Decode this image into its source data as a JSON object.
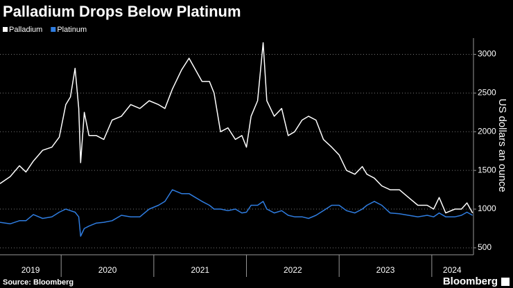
{
  "chart_data": {
    "type": "line",
    "title": "Palladium Drops Below Platinum",
    "y_label": "US dollars an ounce",
    "source": "Source: Bloomberg",
    "brand": "Bloomberg",
    "x": [
      2019.34,
      2019.45,
      2019.55,
      2019.62,
      2019.7,
      2019.8,
      2019.9,
      2019.98,
      2020.05,
      2020.1,
      2020.15,
      2020.19,
      2020.21,
      2020.25,
      2020.3,
      2020.38,
      2020.46,
      2020.55,
      2020.65,
      2020.75,
      2020.85,
      2020.95,
      2021.05,
      2021.12,
      2021.2,
      2021.3,
      2021.38,
      2021.45,
      2021.52,
      2021.6,
      2021.65,
      2021.72,
      2021.8,
      2021.88,
      2021.95,
      2022.0,
      2022.05,
      2022.12,
      2022.18,
      2022.22,
      2022.3,
      2022.38,
      2022.45,
      2022.52,
      2022.6,
      2022.67,
      2022.75,
      2022.83,
      2022.92,
      2023.0,
      2023.08,
      2023.17,
      2023.25,
      2023.3,
      2023.38,
      2023.46,
      2023.55,
      2023.65,
      2023.75,
      2023.85,
      2023.95,
      2024.02,
      2024.08,
      2024.15,
      2024.25,
      2024.32,
      2024.38,
      2024.44
    ],
    "series": [
      {
        "name": "Palladium",
        "color": "#ffffff",
        "values": [
          1330,
          1420,
          1560,
          1480,
          1620,
          1760,
          1800,
          1930,
          2350,
          2450,
          2820,
          2300,
          1600,
          2250,
          1950,
          1950,
          1900,
          2150,
          2200,
          2350,
          2300,
          2400,
          2350,
          2300,
          2550,
          2800,
          2950,
          2800,
          2650,
          2650,
          2500,
          2000,
          2050,
          1900,
          1950,
          1800,
          2200,
          2400,
          3150,
          2400,
          2200,
          2300,
          1950,
          2000,
          2150,
          2200,
          2150,
          1900,
          1800,
          1700,
          1500,
          1450,
          1550,
          1450,
          1400,
          1300,
          1250,
          1250,
          1150,
          1050,
          1050,
          1000,
          1150,
          950,
          1000,
          1000,
          1080,
          950
        ]
      },
      {
        "name": "Platinum",
        "color": "#2f7de1",
        "values": [
          830,
          810,
          850,
          850,
          930,
          880,
          900,
          960,
          1000,
          980,
          960,
          900,
          650,
          750,
          780,
          820,
          830,
          850,
          920,
          900,
          900,
          1000,
          1050,
          1100,
          1250,
          1200,
          1200,
          1150,
          1100,
          1050,
          1000,
          1000,
          980,
          1000,
          950,
          960,
          1050,
          1050,
          1100,
          1000,
          950,
          980,
          920,
          900,
          900,
          880,
          920,
          980,
          1050,
          1050,
          980,
          950,
          1000,
          1050,
          1100,
          1050,
          950,
          940,
          920,
          900,
          920,
          900,
          950,
          900,
          900,
          920,
          960,
          920
        ]
      }
    ],
    "xlim": [
      2019.34,
      2024.45
    ],
    "xticks": [
      {
        "value": 2019.67,
        "label": "2019"
      },
      {
        "value": 2020.5,
        "label": "2020"
      },
      {
        "value": 2021.5,
        "label": "2021"
      },
      {
        "value": 2022.5,
        "label": "2022"
      },
      {
        "value": 2023.5,
        "label": "2023"
      },
      {
        "value": 2024.22,
        "label": "2024"
      }
    ],
    "ylim": [
      410,
      3210
    ],
    "yticks": [
      500,
      1000,
      1500,
      2000,
      2500,
      3000
    ],
    "grid": true
  }
}
